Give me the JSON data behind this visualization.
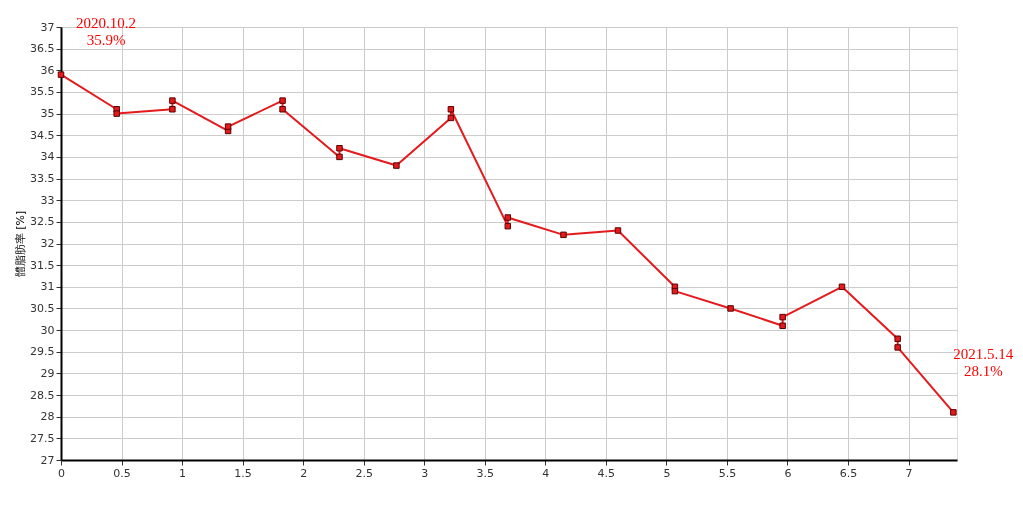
{
  "chart_data": {
    "type": "line",
    "ylabel": "體脂肪率 [%]",
    "x": [
      0,
      0.46,
      0.46,
      0.92,
      0.92,
      1.38,
      1.38,
      1.83,
      1.83,
      2.3,
      2.3,
      2.77,
      3.22,
      3.22,
      3.69,
      3.69,
      4.15,
      4.6,
      5.07,
      5.07,
      5.53,
      5.96,
      5.96,
      6.45,
      6.91,
      6.91,
      7.37
    ],
    "series": [
      {
        "color": "#e41a1c",
        "values": [
          35.9,
          35.1,
          35.0,
          35.1,
          35.3,
          34.6,
          34.7,
          35.3,
          35.1,
          34.0,
          34.2,
          33.8,
          34.9,
          35.1,
          32.4,
          32.6,
          32.2,
          32.3,
          31.0,
          30.9,
          30.5,
          30.1,
          30.3,
          31.0,
          29.8,
          29.6,
          28.1
        ]
      }
    ],
    "xlim": [
      0,
      7.4
    ],
    "xticks": [
      0,
      0.5,
      1,
      1.5,
      2,
      2.5,
      3,
      3.5,
      4,
      4.5,
      5,
      5.5,
      6,
      6.5,
      7
    ],
    "ylim": [
      27,
      37
    ],
    "yticks": [
      27,
      27.5,
      28,
      28.5,
      29,
      29.5,
      30,
      30.5,
      31,
      31.5,
      32,
      32.5,
      33,
      33.5,
      34,
      34.5,
      35,
      35.5,
      36,
      36.5,
      37
    ],
    "grid": true,
    "marker": "square",
    "line_style": "solid",
    "annotations": [
      {
        "text": "2020.10.2\n35.9%",
        "x": 0,
        "y": 35.9
      },
      {
        "text": "2021.5.14\n28.1%",
        "x": 7.37,
        "y": 28.1
      }
    ]
  }
}
